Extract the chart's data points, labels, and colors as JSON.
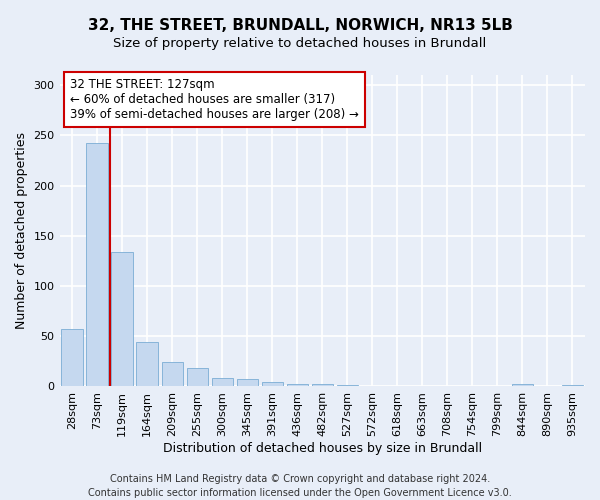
{
  "title1": "32, THE STREET, BRUNDALL, NORWICH, NR13 5LB",
  "title2": "Size of property relative to detached houses in Brundall",
  "xlabel": "Distribution of detached houses by size in Brundall",
  "ylabel": "Number of detached properties",
  "bar_color": "#c5d8ef",
  "bar_edge_color": "#7badd4",
  "categories": [
    "28sqm",
    "73sqm",
    "119sqm",
    "164sqm",
    "209sqm",
    "255sqm",
    "300sqm",
    "345sqm",
    "391sqm",
    "436sqm",
    "482sqm",
    "527sqm",
    "572sqm",
    "618sqm",
    "663sqm",
    "708sqm",
    "754sqm",
    "799sqm",
    "844sqm",
    "890sqm",
    "935sqm"
  ],
  "values": [
    57,
    242,
    134,
    44,
    24,
    18,
    8,
    7,
    4,
    2,
    2,
    1,
    0,
    0,
    0,
    0,
    0,
    0,
    2,
    0,
    1
  ],
  "ylim": [
    0,
    310
  ],
  "yticks": [
    0,
    50,
    100,
    150,
    200,
    250,
    300
  ],
  "property_bin_index": 2,
  "annotation_title": "32 THE STREET: 127sqm",
  "annotation_line1": "← 60% of detached houses are smaller (317)",
  "annotation_line2": "39% of semi-detached houses are larger (208) →",
  "vline_color": "#cc0000",
  "annotation_box_color": "#ffffff",
  "annotation_box_edge": "#cc0000",
  "footer1": "Contains HM Land Registry data © Crown copyright and database right 2024.",
  "footer2": "Contains public sector information licensed under the Open Government Licence v3.0.",
  "bg_color": "#e8eef8",
  "plot_bg_color": "#e8eef8",
  "grid_color": "#ffffff",
  "title1_fontsize": 11,
  "title2_fontsize": 9.5,
  "xlabel_fontsize": 9,
  "ylabel_fontsize": 9,
  "tick_fontsize": 8,
  "footer_fontsize": 7
}
